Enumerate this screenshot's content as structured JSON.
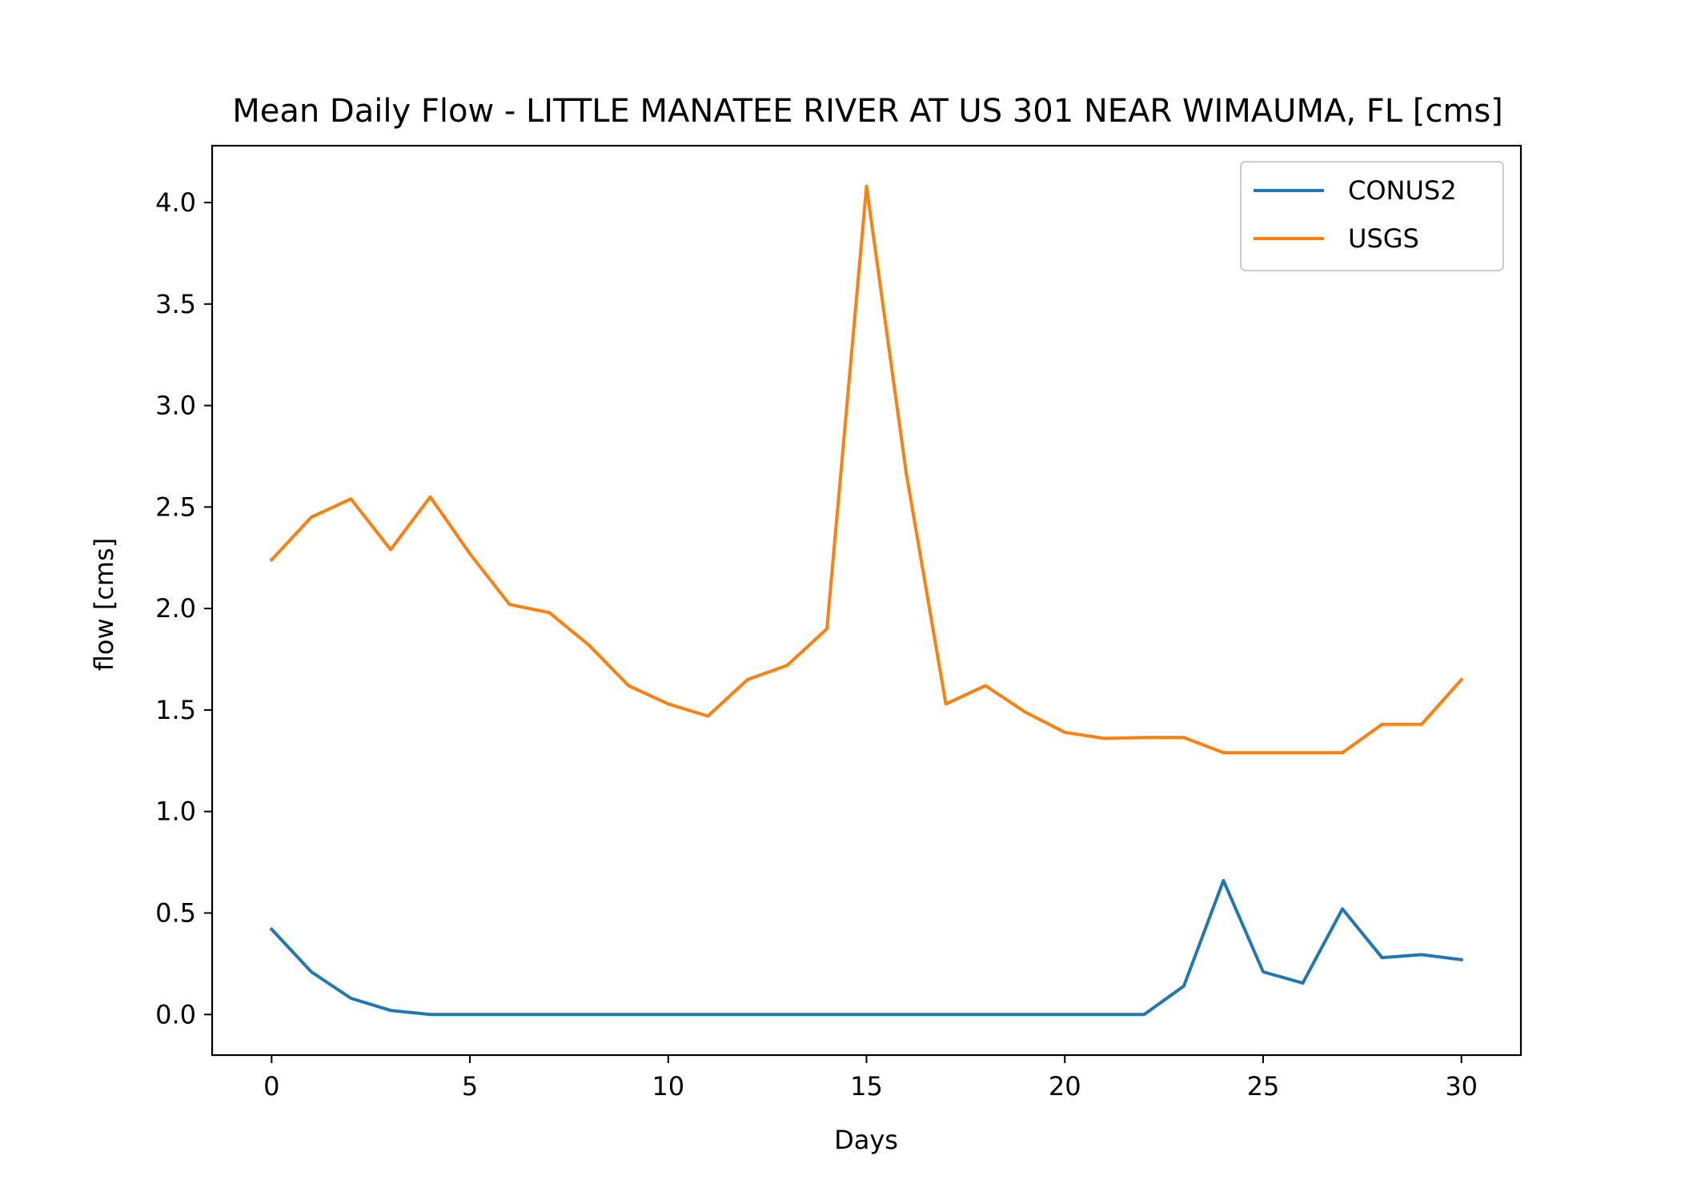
{
  "chart_data": {
    "type": "line",
    "title": "Mean Daily Flow - LITTLE MANATEE RIVER AT US 301 NEAR WIMAUMA, FL [cms]",
    "xlabel": "Days",
    "ylabel": "flow [cms]",
    "xlim": [
      -1.5,
      31.5
    ],
    "ylim": [
      -0.2,
      4.28
    ],
    "xticks": [
      0,
      5,
      10,
      15,
      20,
      25,
      30
    ],
    "xtick_labels": [
      "0",
      "5",
      "10",
      "15",
      "20",
      "25",
      "30"
    ],
    "yticks": [
      0.0,
      0.5,
      1.0,
      1.5,
      2.0,
      2.5,
      3.0,
      3.5,
      4.0
    ],
    "ytick_labels": [
      "0.0",
      "0.5",
      "1.0",
      "1.5",
      "2.0",
      "2.5",
      "3.0",
      "3.5",
      "4.0"
    ],
    "grid": false,
    "legend_position": "upper right",
    "x": [
      0,
      1,
      2,
      3,
      4,
      5,
      6,
      7,
      8,
      9,
      10,
      11,
      12,
      13,
      14,
      15,
      16,
      17,
      18,
      19,
      20,
      21,
      22,
      23,
      24,
      25,
      26,
      27,
      28,
      29,
      30
    ],
    "series": [
      {
        "name": "CONUS2",
        "color": "#1f77b4",
        "values": [
          0.42,
          0.21,
          0.08,
          0.02,
          0.0,
          0.0,
          0.0,
          0.0,
          0.0,
          0.0,
          0.0,
          0.0,
          0.0,
          0.0,
          0.0,
          0.0,
          0.0,
          0.0,
          0.0,
          0.0,
          0.0,
          0.0,
          0.0,
          0.14,
          0.66,
          0.21,
          0.155,
          0.52,
          0.28,
          0.295,
          0.27
        ]
      },
      {
        "name": "USGS",
        "color": "#ff7f0e",
        "values": [
          2.24,
          2.45,
          2.54,
          2.29,
          2.55,
          2.27,
          2.02,
          1.98,
          1.82,
          1.62,
          1.53,
          1.47,
          1.65,
          1.72,
          1.9,
          4.08,
          2.67,
          1.53,
          1.62,
          1.49,
          1.39,
          1.36,
          1.365,
          1.365,
          1.29,
          1.29,
          1.29,
          1.29,
          1.43,
          1.43,
          1.65
        ]
      }
    ]
  }
}
